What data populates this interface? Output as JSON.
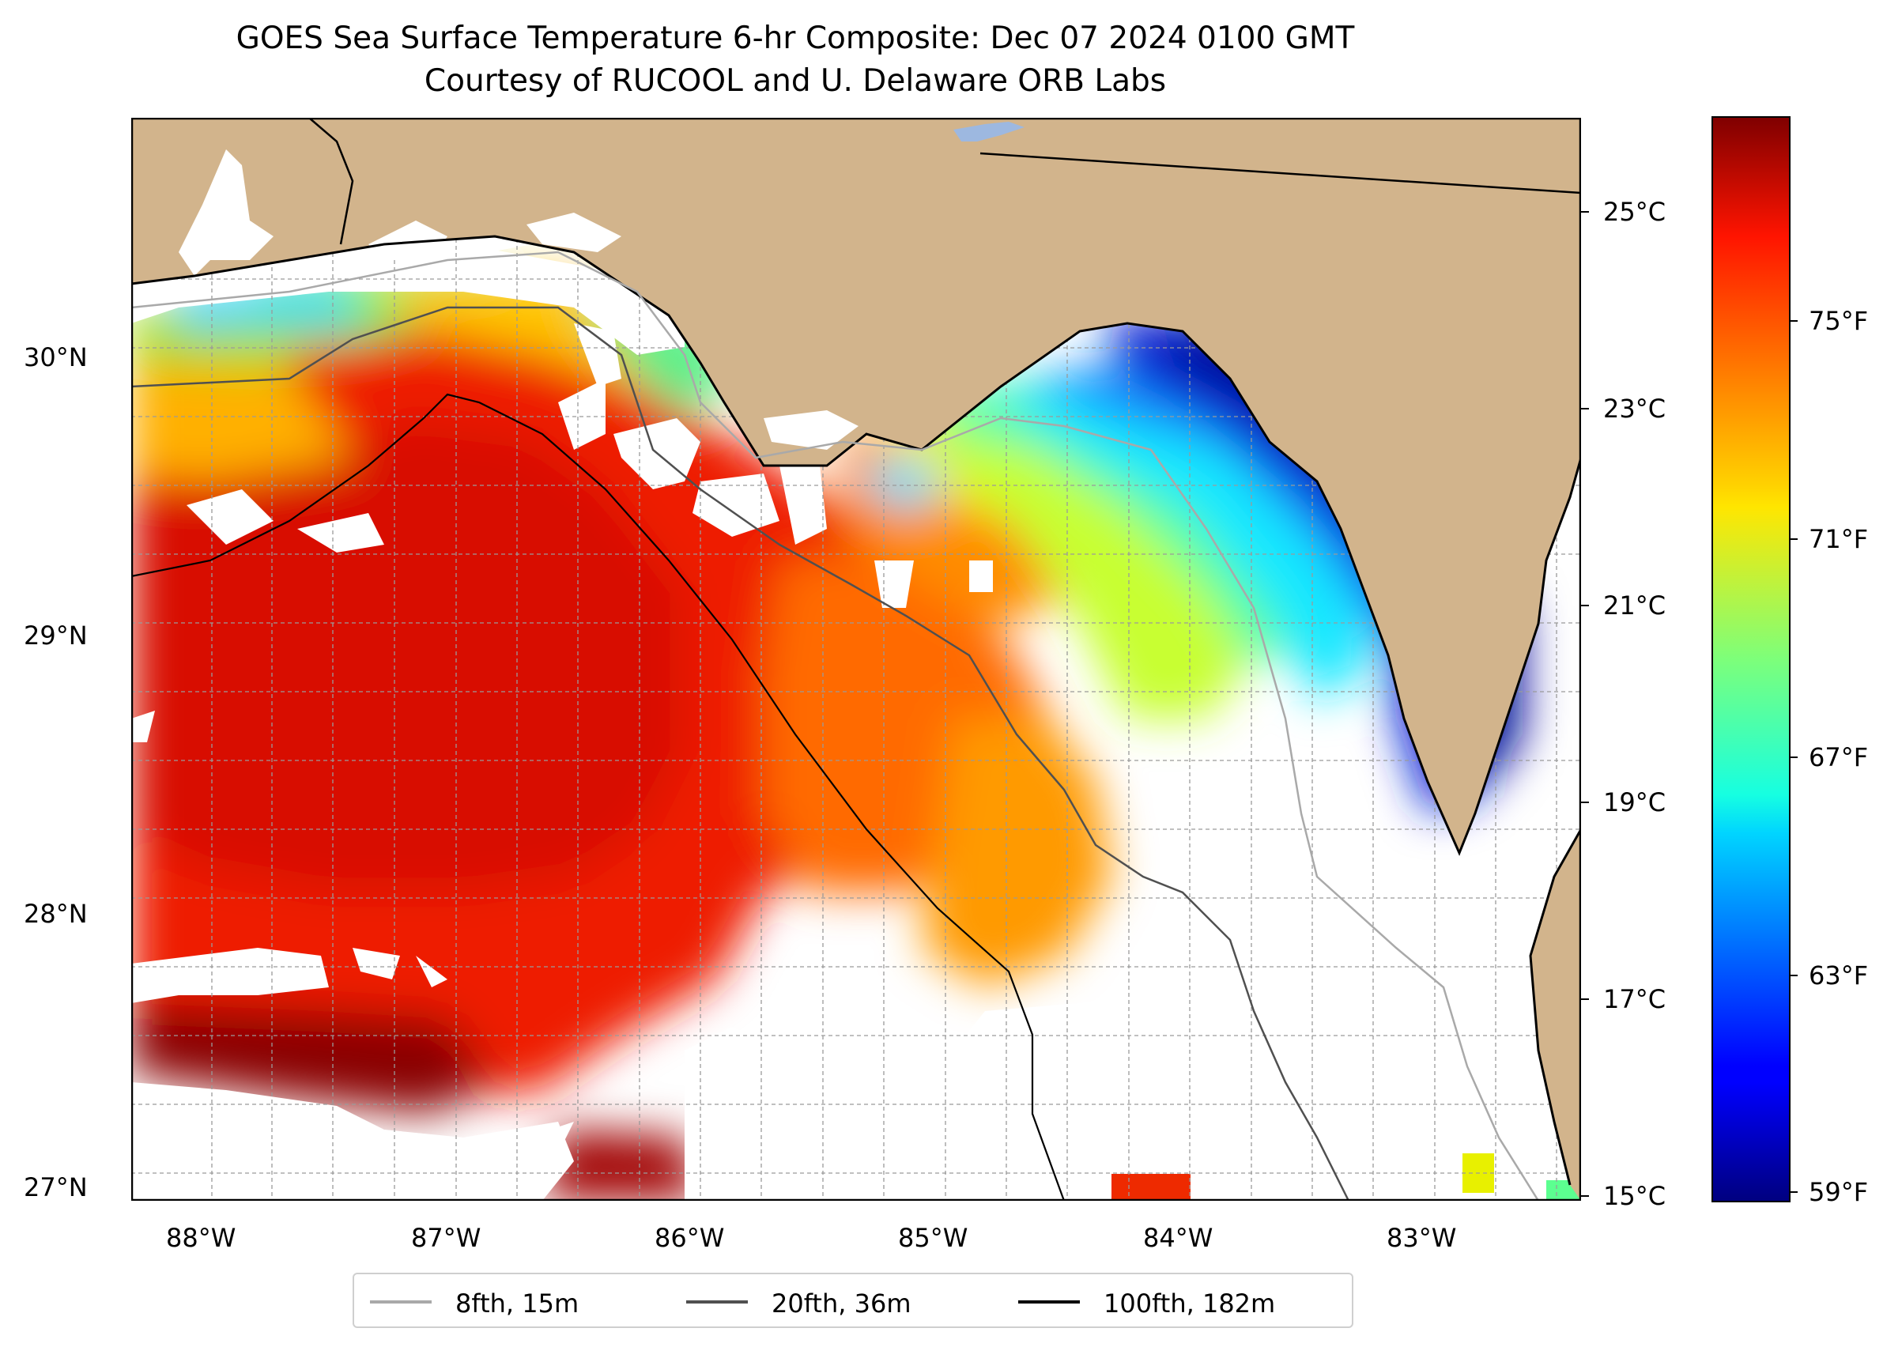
{
  "title": {
    "line1": "GOES Sea Surface Temperature 6-hr Composite: Dec 07 2024 0100 GMT",
    "line2": "Courtesy of RUCOOL and U. Delaware ORB Labs"
  },
  "map": {
    "lon_range": [
      -88.33,
      -82.4
    ],
    "lat_range": [
      26.93,
      30.87
    ],
    "colors": {
      "land": "#D2B48C",
      "no_data": "#FFFFFF",
      "lake": "#9DB8E0"
    },
    "lat_ticks": [
      "30°N",
      "29°N",
      "28°N",
      "27°N"
    ],
    "lon_ticks": [
      "88°W",
      "87°W",
      "86°W",
      "85°W",
      "84°W",
      "83°W"
    ],
    "sst_pattern": "warm (red) offshore west, cool (blue) nearshore Big Bend coast"
  },
  "colorbar": {
    "colormap": "jet",
    "celsius_labels": [
      "25°C",
      "23°C",
      "21°C",
      "19°C",
      "17°C",
      "15°C"
    ],
    "fahrenheit_labels": [
      "75°F",
      "71°F",
      "67°F",
      "63°F",
      "59°F"
    ]
  },
  "legend": {
    "items": [
      {
        "label": "8fth, 15m",
        "color": "#a9a9a9"
      },
      {
        "label": "20fth, 36m",
        "color": "#505050"
      },
      {
        "label": "100fth, 182m",
        "color": "#000000"
      }
    ]
  }
}
